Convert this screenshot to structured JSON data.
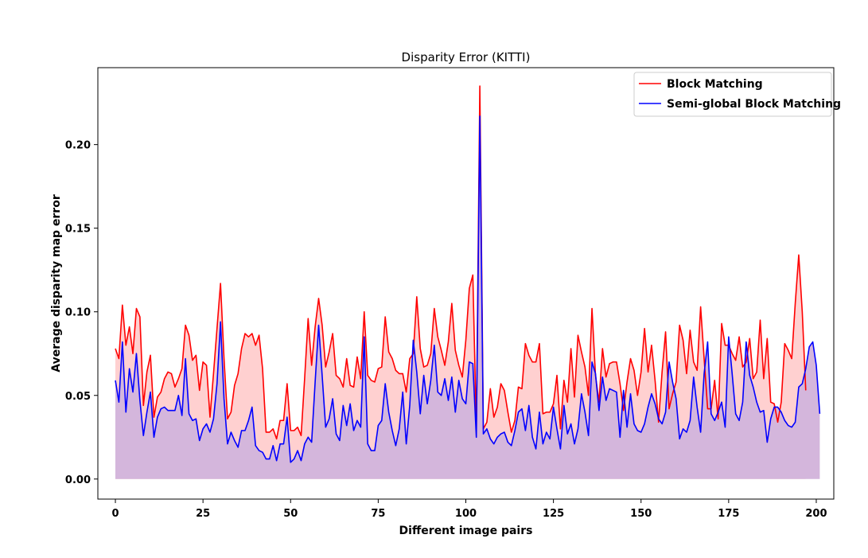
{
  "chart_data": {
    "type": "line",
    "title": "Disparity Error (KITTI)",
    "xlabel": "Different image pairs",
    "ylabel": "Average disparity map error",
    "xlim": [
      -5,
      205
    ],
    "ylim": [
      -0.012,
      0.246
    ],
    "xticks": [
      0,
      25,
      50,
      75,
      100,
      125,
      150,
      175,
      200
    ],
    "yticks": [
      0.0,
      0.05,
      0.1,
      0.15,
      0.2
    ],
    "ytick_labels": [
      "0.00",
      "0.05",
      "0.10",
      "0.15",
      "0.20"
    ],
    "legend_position": "top-right",
    "grid": false,
    "series": [
      {
        "name": "Block Matching",
        "color": "#ff0000",
        "fill_color": "#ffd0d0",
        "values": [
          0.078,
          0.072,
          0.104,
          0.08,
          0.091,
          0.075,
          0.102,
          0.097,
          0.044,
          0.064,
          0.074,
          0.037,
          0.049,
          0.052,
          0.06,
          0.064,
          0.063,
          0.055,
          0.06,
          0.066,
          0.092,
          0.086,
          0.071,
          0.074,
          0.053,
          0.07,
          0.068,
          0.037,
          0.063,
          0.09,
          0.117,
          0.072,
          0.036,
          0.04,
          0.056,
          0.063,
          0.078,
          0.087,
          0.085,
          0.087,
          0.08,
          0.086,
          0.066,
          0.028,
          0.028,
          0.03,
          0.024,
          0.035,
          0.035,
          0.057,
          0.029,
          0.029,
          0.031,
          0.026,
          0.06,
          0.096,
          0.068,
          0.091,
          0.108,
          0.092,
          0.067,
          0.076,
          0.087,
          0.062,
          0.06,
          0.055,
          0.072,
          0.056,
          0.055,
          0.073,
          0.06,
          0.1,
          0.062,
          0.059,
          0.058,
          0.066,
          0.067,
          0.097,
          0.076,
          0.072,
          0.065,
          0.063,
          0.063,
          0.052,
          0.072,
          0.075,
          0.109,
          0.078,
          0.067,
          0.068,
          0.075,
          0.102,
          0.085,
          0.077,
          0.068,
          0.082,
          0.105,
          0.077,
          0.068,
          0.061,
          0.083,
          0.114,
          0.122,
          0.03,
          0.235,
          0.03,
          0.034,
          0.054,
          0.037,
          0.043,
          0.057,
          0.053,
          0.04,
          0.028,
          0.035,
          0.055,
          0.054,
          0.081,
          0.074,
          0.07,
          0.07,
          0.081,
          0.039,
          0.04,
          0.04,
          0.045,
          0.062,
          0.03,
          0.059,
          0.046,
          0.078,
          0.049,
          0.086,
          0.076,
          0.067,
          0.05,
          0.102,
          0.062,
          0.046,
          0.078,
          0.061,
          0.069,
          0.07,
          0.07,
          0.057,
          0.041,
          0.058,
          0.072,
          0.065,
          0.05,
          0.064,
          0.09,
          0.064,
          0.08,
          0.059,
          0.034,
          0.064,
          0.088,
          0.042,
          0.051,
          0.058,
          0.092,
          0.083,
          0.063,
          0.089,
          0.07,
          0.065,
          0.103,
          0.072,
          0.042,
          0.042,
          0.059,
          0.036,
          0.093,
          0.08,
          0.08,
          0.075,
          0.071,
          0.085,
          0.067,
          0.07,
          0.084,
          0.06,
          0.064,
          0.095,
          0.06,
          0.084,
          0.046,
          0.045,
          0.034,
          0.046,
          0.081,
          0.077,
          0.072,
          0.105,
          0.134,
          0.1,
          0.053
        ]
      },
      {
        "name": "Semi-global Block Matching",
        "color": "#0000ff",
        "fill_color": "#d4b6dc",
        "values": [
          0.059,
          0.046,
          0.082,
          0.04,
          0.066,
          0.052,
          0.075,
          0.047,
          0.026,
          0.04,
          0.052,
          0.025,
          0.037,
          0.042,
          0.043,
          0.041,
          0.041,
          0.041,
          0.05,
          0.038,
          0.072,
          0.039,
          0.035,
          0.036,
          0.023,
          0.03,
          0.033,
          0.028,
          0.036,
          0.057,
          0.094,
          0.048,
          0.021,
          0.028,
          0.023,
          0.019,
          0.029,
          0.029,
          0.035,
          0.043,
          0.02,
          0.017,
          0.016,
          0.012,
          0.012,
          0.02,
          0.011,
          0.021,
          0.021,
          0.037,
          0.01,
          0.012,
          0.017,
          0.011,
          0.021,
          0.025,
          0.022,
          0.058,
          0.092,
          0.062,
          0.031,
          0.036,
          0.048,
          0.027,
          0.023,
          0.044,
          0.032,
          0.045,
          0.029,
          0.035,
          0.031,
          0.085,
          0.021,
          0.017,
          0.017,
          0.032,
          0.035,
          0.057,
          0.04,
          0.029,
          0.02,
          0.03,
          0.052,
          0.021,
          0.044,
          0.083,
          0.064,
          0.039,
          0.062,
          0.045,
          0.059,
          0.08,
          0.052,
          0.05,
          0.06,
          0.047,
          0.061,
          0.04,
          0.059,
          0.048,
          0.045,
          0.07,
          0.069,
          0.025,
          0.217,
          0.027,
          0.03,
          0.024,
          0.021,
          0.025,
          0.027,
          0.028,
          0.022,
          0.02,
          0.029,
          0.04,
          0.042,
          0.029,
          0.044,
          0.025,
          0.018,
          0.04,
          0.021,
          0.028,
          0.024,
          0.043,
          0.03,
          0.018,
          0.044,
          0.027,
          0.033,
          0.021,
          0.03,
          0.051,
          0.04,
          0.026,
          0.07,
          0.063,
          0.041,
          0.061,
          0.047,
          0.054,
          0.053,
          0.052,
          0.025,
          0.053,
          0.031,
          0.051,
          0.033,
          0.029,
          0.028,
          0.033,
          0.043,
          0.051,
          0.045,
          0.036,
          0.033,
          0.04,
          0.07,
          0.058,
          0.048,
          0.024,
          0.03,
          0.028,
          0.035,
          0.061,
          0.043,
          0.028,
          0.063,
          0.082,
          0.039,
          0.035,
          0.04,
          0.046,
          0.031,
          0.085,
          0.063,
          0.039,
          0.035,
          0.046,
          0.082,
          0.062,
          0.055,
          0.046,
          0.04,
          0.041,
          0.022,
          0.036,
          0.043,
          0.043,
          0.04,
          0.035,
          0.032,
          0.031,
          0.034,
          0.055,
          0.057,
          0.066,
          0.079,
          0.082,
          0.068,
          0.039
        ]
      }
    ]
  }
}
